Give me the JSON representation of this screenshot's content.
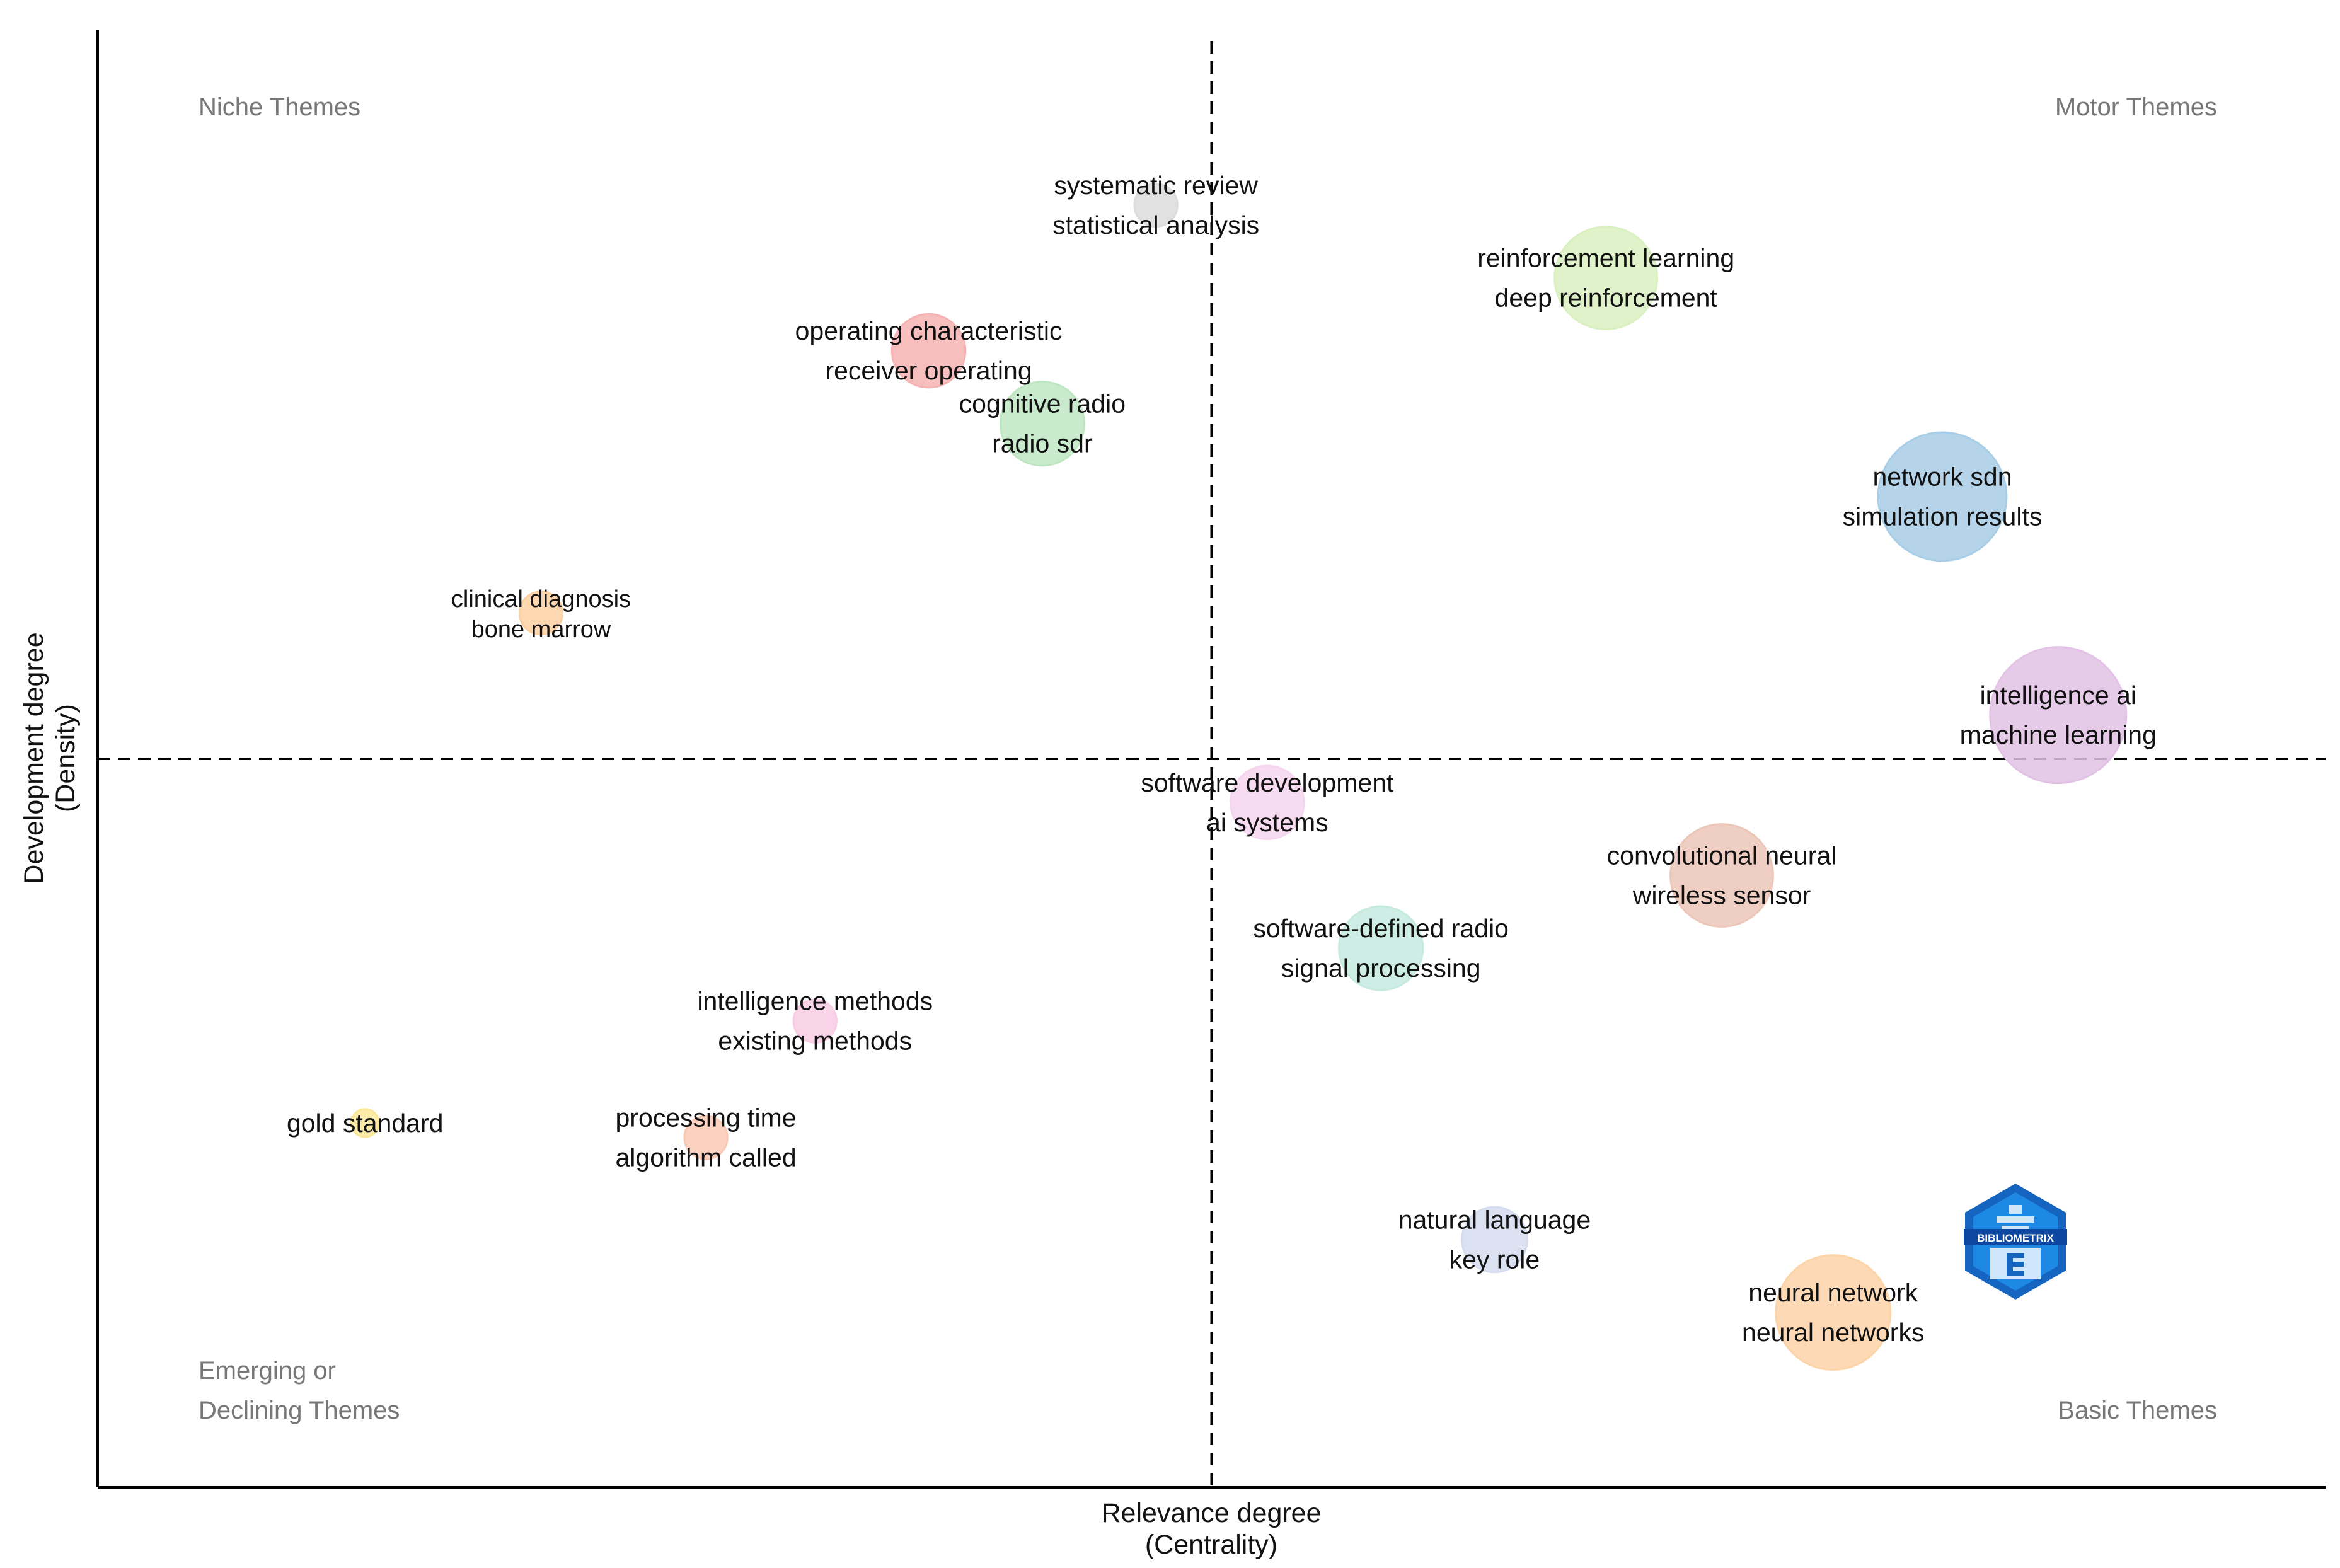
{
  "chart_data": {
    "type": "scatter",
    "subtype": "bubble-thematic-map",
    "xlabel": [
      "Relevance degree",
      "(Centrality)"
    ],
    "ylabel": [
      "Development degree",
      "(Density)"
    ],
    "xlim": [
      0,
      100
    ],
    "ylim": [
      0,
      100
    ],
    "x_divider": 50,
    "y_divider": 50,
    "grid": false,
    "quadrants": {
      "top_left": [
        "Niche Themes"
      ],
      "top_right": [
        "Motor Themes"
      ],
      "bottom_left": [
        "Emerging or",
        "Declining Themes"
      ],
      "bottom_right": [
        "Basic Themes"
      ]
    },
    "clusters": [
      {
        "labels": [
          "systematic review",
          "statistical analysis"
        ],
        "x": 47.5,
        "y": 88,
        "size": 4,
        "color": "#dcdcdc"
      },
      {
        "labels": [
          "reinforcement learning",
          "deep reinforcement"
        ],
        "x": 67.7,
        "y": 83,
        "size": 35,
        "color": "#d9f0c0"
      },
      {
        "labels": [
          "operating characteristic",
          "receiver operating"
        ],
        "x": 37.3,
        "y": 78,
        "size": 16,
        "color": "#f6b3b3"
      },
      {
        "labels": [
          "cognitive radio",
          "radio sdr"
        ],
        "x": 42.4,
        "y": 73,
        "size": 22,
        "color": "#bfe6c3"
      },
      {
        "labels": [
          "network sdn",
          "simulation results"
        ],
        "x": 82.8,
        "y": 68,
        "size": 58,
        "color": "#a8cde6"
      },
      {
        "labels": [
          "clinical diagnosis",
          "bone marrow"
        ],
        "x": 19.9,
        "y": 60,
        "size": 4,
        "color": "#fdd0a2",
        "small": true
      },
      {
        "labels": [
          "intelligence ai",
          "machine learning"
        ],
        "x": 88.0,
        "y": 53,
        "size": 66,
        "color": "#e2c2e5"
      },
      {
        "labels": [
          "software development",
          "ai systems"
        ],
        "x": 52.5,
        "y": 47,
        "size": 16,
        "color": "#f6d5ee"
      },
      {
        "labels": [
          "convolutional neural",
          "wireless sensor"
        ],
        "x": 72.9,
        "y": 42,
        "size": 35,
        "color": "#ecc7b9"
      },
      {
        "labels": [
          "software-defined radio",
          "signal processing"
        ],
        "x": 57.6,
        "y": 37,
        "size": 22,
        "color": "#c6eadf"
      },
      {
        "labels": [
          "intelligence methods",
          "existing methods"
        ],
        "x": 32.2,
        "y": 32,
        "size": 4,
        "color": "#f8cde5"
      },
      {
        "labels": [
          "gold standard"
        ],
        "x": 12.0,
        "y": 25,
        "size": 1,
        "color": "#fbe79a"
      },
      {
        "labels": [
          "processing time",
          "algorithm called"
        ],
        "x": 27.3,
        "y": 24,
        "size": 4,
        "color": "#fac9b5"
      },
      {
        "labels": [
          "natural language",
          "key role"
        ],
        "x": 62.7,
        "y": 17,
        "size": 12,
        "color": "#d6dcf0"
      },
      {
        "labels": [
          "neural network",
          "neural networks"
        ],
        "x": 77.9,
        "y": 12,
        "size": 45,
        "color": "#fdd4a8"
      }
    ]
  },
  "logo": {
    "text": "BIBLIOMETRIX",
    "colors": [
      "#1565c0",
      "#1e88e5",
      "#bbdefb"
    ]
  }
}
